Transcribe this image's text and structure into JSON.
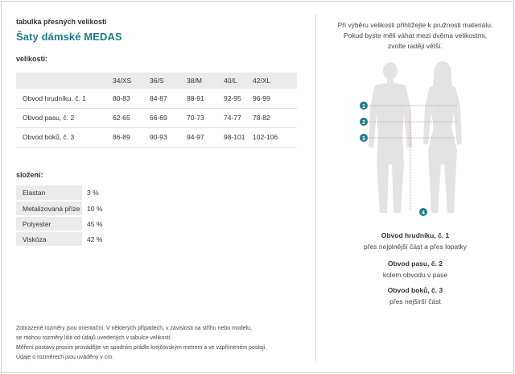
{
  "header": {
    "eyebrow": "tabulka přesných velikostí",
    "title": "Šaty dámské MEDAS"
  },
  "sizes_section": {
    "label": "velikosti:",
    "columns": [
      "",
      "34/XS",
      "36/S",
      "38/M",
      "40/L",
      "42/XL"
    ],
    "rows": [
      {
        "label": "Obvod hrudníku, č. 1",
        "values": [
          "80-83",
          "84-87",
          "88-91",
          "92-95",
          "96-99"
        ]
      },
      {
        "label": "Obvod pasu, č. 2",
        "values": [
          "62-65",
          "66-69",
          "70-73",
          "74-77",
          "78-82"
        ]
      },
      {
        "label": "Obvod boků, č. 3",
        "values": [
          "86-89",
          "90-93",
          "94-97",
          "98-101",
          "102-106"
        ]
      }
    ]
  },
  "composition": {
    "label": "složení:",
    "rows": [
      {
        "name": "Elastan",
        "value": "3 %"
      },
      {
        "name": "Metalizovaná příze",
        "value": "10 %"
      },
      {
        "name": "Polyester",
        "value": "45 %"
      },
      {
        "name": "Viskóza",
        "value": "42 %"
      }
    ]
  },
  "notes": [
    "Zobrazené rozměry jsou orientační. V některých případech, v závislosti na střihu nebo modelu,",
    "se mohou rozměry lišit od údajů uvedených v tabulce velikostí.",
    "Měření postavy prosím provádějte ve spodním prádle krejčovským metrem a ve vzpřímeném postoji.",
    "Údaje o rozměrech jsou uváděny v cm."
  ],
  "right": {
    "intro": [
      "Při výběru velikosti přihlížejte k pružnosti materiálu.",
      "Pokud byste měli váhat mezi dvěma velikostmi,",
      "zvolte raději větší."
    ],
    "markers": [
      "1",
      "2",
      "3",
      "4"
    ],
    "measurements": [
      {
        "title": "Obvod hrudníku, č. 1",
        "desc": "přes nejplnější část a přes lopatky"
      },
      {
        "title": "Obvod pasu, č. 2",
        "desc": "kolem obvodu v pase"
      },
      {
        "title": "Obvod boků, č. 3",
        "desc": "přes nejširší část"
      }
    ]
  },
  "colors": {
    "accent": "#1f7c8a",
    "figure": "#e3e3e3",
    "marker": "#1f7c8a"
  }
}
